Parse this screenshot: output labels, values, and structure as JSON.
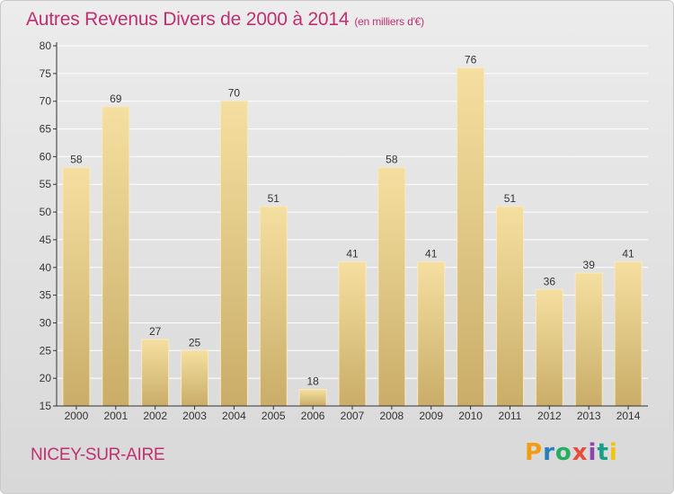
{
  "header": {
    "title": "Autres Revenus Divers de 2000 à 2014",
    "unit": "(en milliers d'€)"
  },
  "footer": {
    "commune": "NICEY-SUR-AIRE",
    "logo": "Proxiti",
    "logo_colors": [
      "#f39c12",
      "#2980b9",
      "#27ae60",
      "#e74c3c",
      "#8e44ad",
      "#16a085",
      "#f1c40f"
    ]
  },
  "colors": {
    "title": "#c03070",
    "bar_light": "#f5dfa0",
    "bar_dark": "#c9ad68",
    "gridline": "#ffffff"
  },
  "chart_data": {
    "type": "bar",
    "categories": [
      "2000",
      "2001",
      "2002",
      "2003",
      "2004",
      "2005",
      "2006",
      "2007",
      "2008",
      "2009",
      "2010",
      "2011",
      "2012",
      "2013",
      "2014"
    ],
    "values": [
      58,
      69,
      27,
      25,
      70,
      51,
      18,
      41,
      58,
      41,
      76,
      51,
      36,
      39,
      41
    ],
    "title": "Autres Revenus Divers de 2000 à 2014",
    "subtitle": "(en milliers d'€)",
    "xlabel": "",
    "ylabel": "",
    "ylim": [
      15,
      80
    ],
    "yticks": [
      15,
      20,
      25,
      30,
      35,
      40,
      45,
      50,
      55,
      60,
      65,
      70,
      75,
      80
    ],
    "grid": true,
    "data_labels": true
  }
}
